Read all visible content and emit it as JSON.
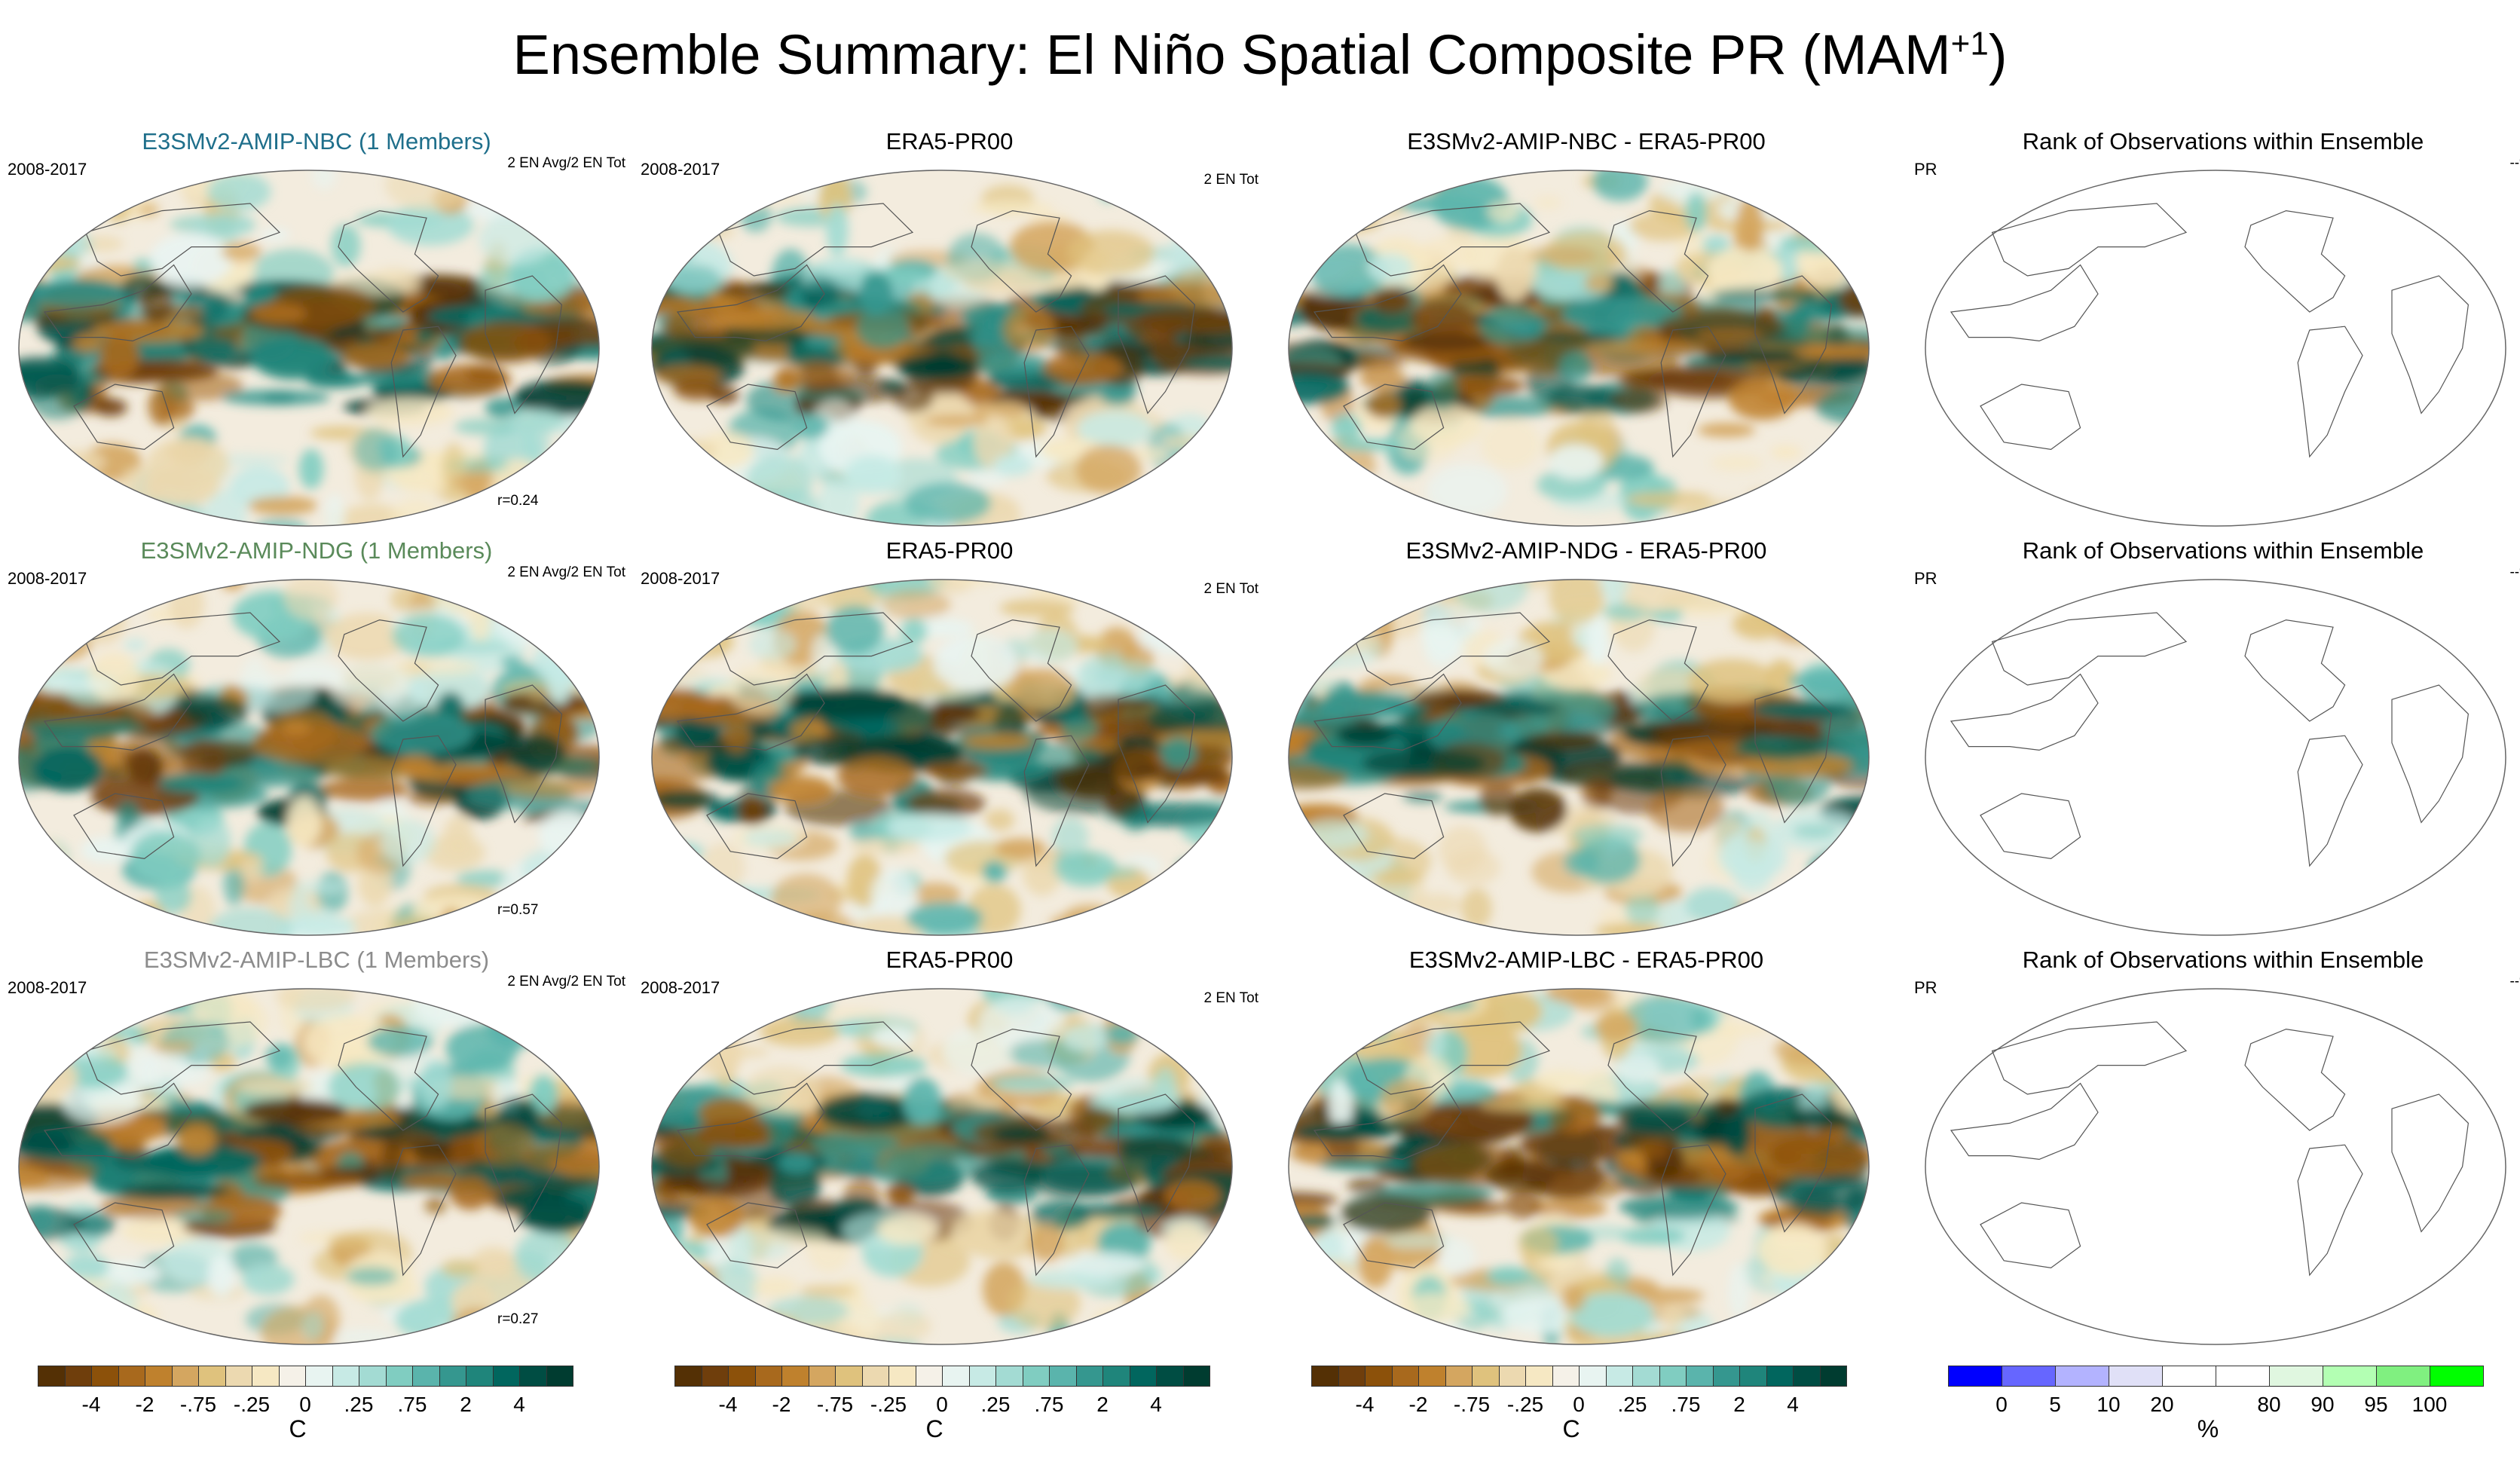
{
  "title": {
    "text": "Ensemble Summary: El Niño Spatial Composite PR (MAM",
    "sup": "+1",
    "close": ")"
  },
  "colors": {
    "model_nbc": "#1f6f8b",
    "model_ndg": "#5a8a5a",
    "model_lbc": "#8c8c8c",
    "ocean_bg": "#f3ecde",
    "land_line": "#555555"
  },
  "rows": [
    {
      "model": {
        "title": "E3SMv2-AMIP-NBC (1 Members)",
        "color_key": "model_nbc",
        "left": "2008-2017",
        "right": "2 EN Avg/2 EN Tot",
        "r": "r=0.24"
      },
      "obs": {
        "title": "ERA5-PR00",
        "left": "2008-2017",
        "right": "2 EN Tot"
      },
      "diff": {
        "title": "E3SMv2-AMIP-NBC - ERA5-PR00"
      },
      "rank": {
        "title": "Rank of Observations within Ensemble",
        "left": "PR",
        "right": "--%"
      }
    },
    {
      "model": {
        "title": "E3SMv2-AMIP-NDG (1 Members)",
        "color_key": "model_ndg",
        "left": "2008-2017",
        "right": "2 EN Avg/2 EN Tot",
        "r": "r=0.57"
      },
      "obs": {
        "title": "ERA5-PR00",
        "left": "2008-2017",
        "right": "2 EN Tot"
      },
      "diff": {
        "title": "E3SMv2-AMIP-NDG - ERA5-PR00"
      },
      "rank": {
        "title": "Rank of Observations within Ensemble",
        "left": "PR",
        "right": "--%"
      }
    },
    {
      "model": {
        "title": "E3SMv2-AMIP-LBC (1 Members)",
        "color_key": "model_lbc",
        "left": "2008-2017",
        "right": "2 EN Avg/2 EN Tot",
        "r": "r=0.27"
      },
      "obs": {
        "title": "ERA5-PR00",
        "left": "2008-2017",
        "right": "2 EN Tot"
      },
      "diff": {
        "title": "E3SMv2-AMIP-LBC - ERA5-PR00"
      },
      "rank": {
        "title": "Rank of Observations within Ensemble",
        "left": "PR",
        "right": "--%"
      }
    }
  ],
  "chart_data": [
    {
      "type": "heatmap",
      "description_key": "precip_colorbar",
      "colorbar_colors": [
        "#543005",
        "#6f3e0c",
        "#8c510a",
        "#a8691d",
        "#bf812d",
        "#d4a660",
        "#dfc27d",
        "#ecd9b0",
        "#f6e8c3",
        "#f5f1e8",
        "#e8f4f1",
        "#c7eae5",
        "#a3dbd3",
        "#80cdc1",
        "#5ab4ac",
        "#35978f",
        "#1f857b",
        "#01665e",
        "#004d43",
        "#003c30"
      ],
      "colorbar_ticks": [
        "-4",
        "-2",
        "-.75",
        "-.25",
        "0",
        ".25",
        ".75",
        "2",
        "4"
      ],
      "colorbar_tick_positions": [
        2,
        4,
        6,
        8,
        10,
        12,
        14,
        16,
        18
      ],
      "unit": "C"
    },
    {
      "type": "heatmap",
      "description_key": "rank_colorbar",
      "colorbar_colors": [
        "#0000ff",
        "#6666ff",
        "#b3b3ff",
        "#e0e0f7",
        "#ffffff",
        "#ffffff",
        "#e0f7e0",
        "#b3ffb3",
        "#80f080",
        "#00ff00"
      ],
      "colorbar_ticks": [
        "0",
        "5",
        "10",
        "20",
        "80",
        "90",
        "95",
        "100"
      ],
      "colorbar_tick_positions": [
        1,
        2,
        3,
        4,
        6,
        7,
        8,
        9
      ],
      "unit": "%"
    }
  ]
}
